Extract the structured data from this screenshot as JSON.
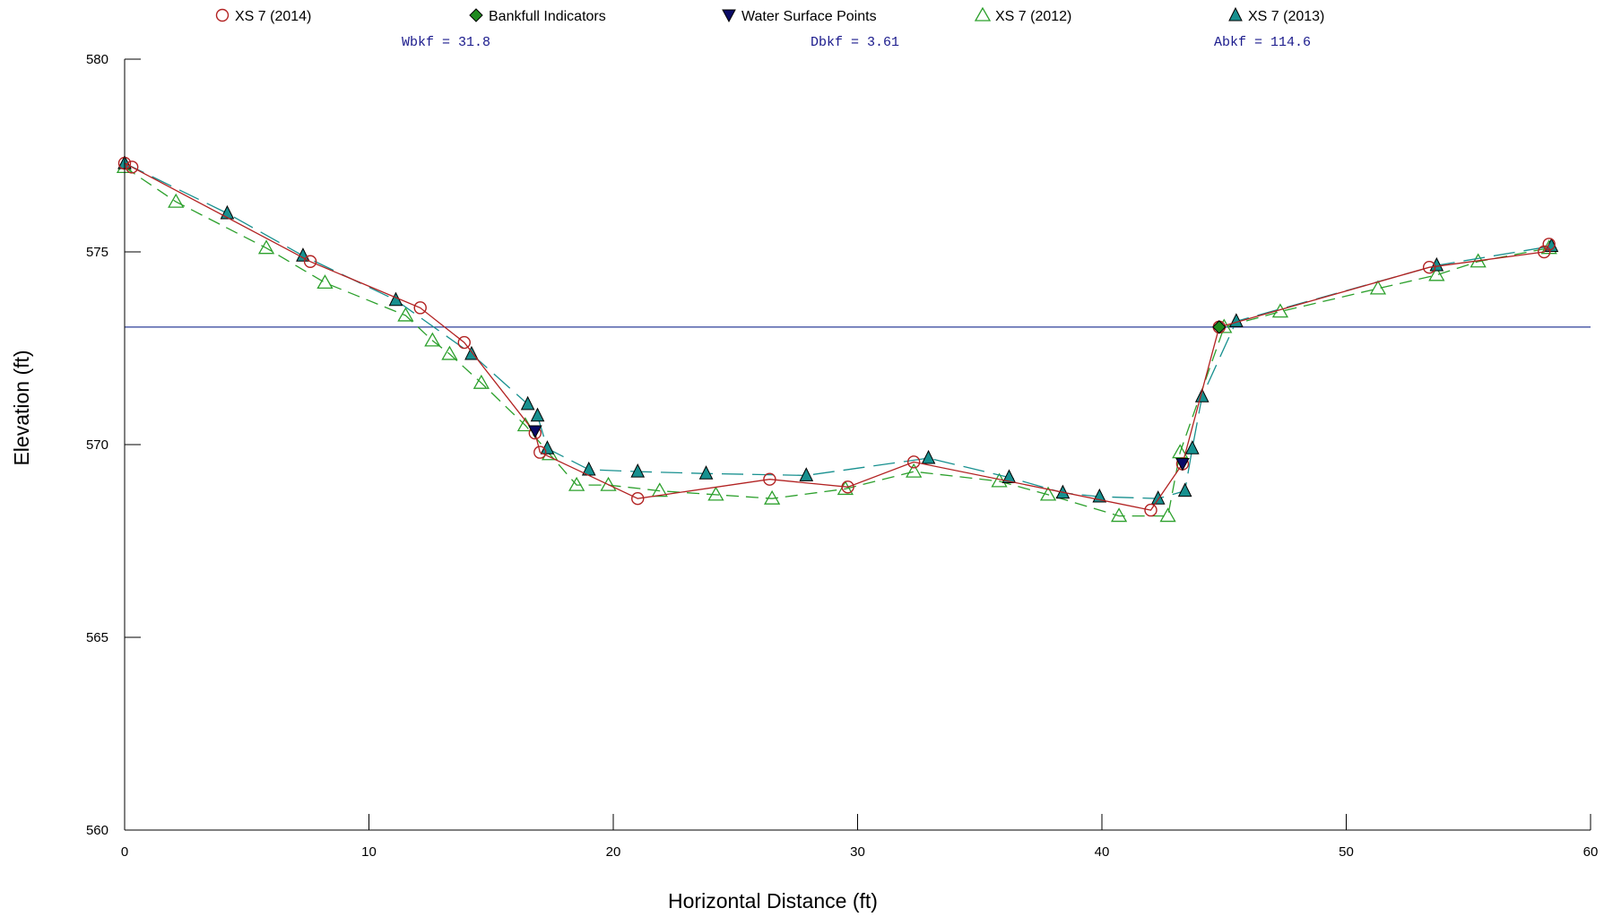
{
  "chart_data": {
    "type": "line",
    "title": "",
    "xlabel": "Horizontal Distance (ft)",
    "ylabel": "Elevation (ft)",
    "xlim": [
      0,
      60
    ],
    "ylim": [
      560,
      580
    ],
    "x_ticks": [
      "0",
      "10",
      "20",
      "30",
      "40",
      "50",
      "60"
    ],
    "y_ticks": [
      "560",
      "565",
      "570",
      "575",
      "580"
    ],
    "grid": false,
    "legend_position": "top",
    "annotations": [
      {
        "label": "Wbkf = 31.8"
      },
      {
        "label": "Dbkf = 3.61"
      },
      {
        "label": "Abkf = 114.6"
      }
    ],
    "bankfull_elevation": 573.05,
    "series": [
      {
        "name": "XS 7 (2014)",
        "marker": "circle-open",
        "line": "solid",
        "color": "#b22222",
        "x": [
          0,
          0.3,
          7.6,
          12.1,
          13.9,
          16.8,
          17.0,
          21.0,
          26.4,
          29.6,
          32.3,
          42.0,
          43.3,
          44.8,
          53.4,
          58.1,
          58.3
        ],
        "y": [
          577.3,
          577.2,
          574.75,
          573.55,
          572.65,
          570.3,
          569.8,
          568.6,
          569.1,
          568.9,
          569.55,
          568.3,
          569.5,
          573.05,
          574.6,
          575.0,
          575.2
        ]
      },
      {
        "name": "Bankfull Indicators",
        "marker": "diamond-filled",
        "line": "none",
        "color": "#1f8a1f",
        "x": [
          44.8
        ],
        "y": [
          573.05
        ]
      },
      {
        "name": "Water Surface Points",
        "marker": "triangle-down-filled",
        "line": "none",
        "color": "#0a0a66",
        "x": [
          16.8,
          43.3
        ],
        "y": [
          570.35,
          569.5
        ]
      },
      {
        "name": "XS 7 (2012)",
        "marker": "triangle-open",
        "line": "dashed",
        "color": "#2ca02c",
        "x": [
          0,
          2.1,
          5.8,
          8.2,
          11.5,
          12.6,
          13.3,
          14.6,
          16.4,
          17.4,
          18.5,
          19.8,
          21.9,
          24.2,
          26.5,
          29.5,
          32.3,
          35.8,
          37.8,
          40.7,
          42.7,
          43.2,
          45.0,
          47.3,
          51.3,
          53.7,
          55.4,
          58.3
        ],
        "y": [
          577.2,
          576.3,
          575.1,
          574.2,
          573.35,
          572.7,
          572.35,
          571.6,
          570.5,
          569.75,
          568.95,
          568.95,
          568.8,
          568.7,
          568.6,
          568.85,
          569.3,
          569.05,
          568.7,
          568.15,
          568.15,
          569.8,
          573.05,
          573.45,
          574.05,
          574.4,
          574.75,
          575.1
        ]
      },
      {
        "name": "XS 7 (2013)",
        "marker": "triangle-filled",
        "line": "long-dash",
        "color": "#17908f",
        "x": [
          0,
          4.2,
          7.3,
          11.1,
          14.2,
          16.5,
          16.9,
          17.3,
          19.0,
          21.0,
          23.8,
          27.9,
          32.9,
          36.2,
          38.4,
          39.9,
          42.3,
          43.4,
          43.7,
          44.1,
          45.5,
          53.7,
          58.4
        ],
        "y": [
          577.3,
          576.0,
          574.9,
          573.75,
          572.35,
          571.05,
          570.75,
          569.9,
          569.35,
          569.3,
          569.25,
          569.2,
          569.65,
          569.15,
          568.75,
          568.65,
          568.6,
          568.8,
          569.9,
          571.25,
          573.2,
          574.65,
          575.15
        ]
      }
    ]
  }
}
